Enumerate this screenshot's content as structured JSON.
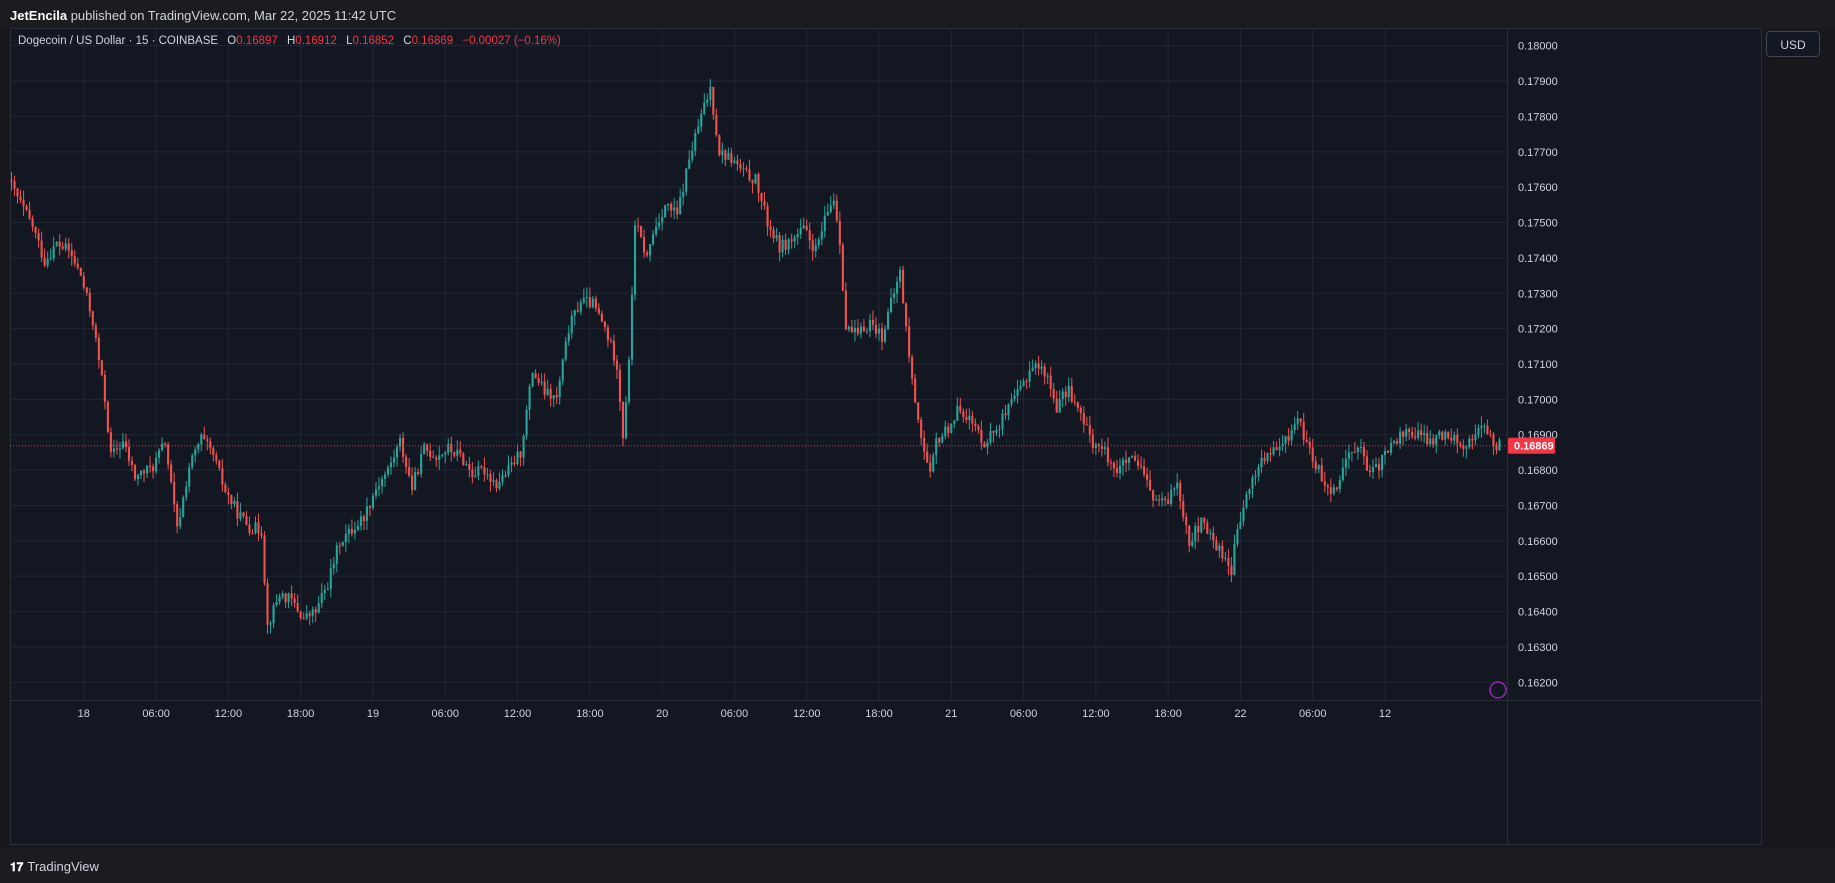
{
  "header": {
    "author": "JetEncila",
    "rest": " published on TradingView.com, Mar 22, 2025 11:42 UTC"
  },
  "legend": {
    "symbol": "Dogecoin / US Dollar · 15 · COINBASE",
    "o_label": "O",
    "o": "0.16897",
    "h_label": "H",
    "h": "0.16912",
    "l_label": "L",
    "l": "0.16852",
    "c_label": "C",
    "c": "0.16869",
    "change": "−0.00027 (−0.16%)"
  },
  "currency_button": "USD",
  "footer": {
    "brand": "TradingView",
    "logo_icon": "tradingview-logo-icon"
  },
  "colors": {
    "up": "#26a69a",
    "down": "#ef5350",
    "last_price": "#f23645",
    "grid": "#232734",
    "text": "#d1d4dc"
  },
  "chart_data": {
    "type": "candlestick",
    "interval": "15m",
    "ylim": [
      0.1615,
      0.1805
    ],
    "y_ticks": [
      "0.18000",
      "0.17900",
      "0.17800",
      "0.17700",
      "0.17600",
      "0.17500",
      "0.17400",
      "0.17300",
      "0.17200",
      "0.17100",
      "0.17000",
      "0.16900",
      "0.16800",
      "0.16700",
      "0.16600",
      "0.16500",
      "0.16400",
      "0.16300",
      "0.16200"
    ],
    "x_ticks": [
      "18",
      "06:00",
      "12:00",
      "18:00",
      "19",
      "06:00",
      "12:00",
      "18:00",
      "20",
      "06:00",
      "12:00",
      "18:00",
      "21",
      "06:00",
      "12:00",
      "18:00",
      "22",
      "06:00",
      "12"
    ],
    "last_price": {
      "value": 0.16869,
      "label": "0.16869"
    },
    "price_anchors": [
      [
        0,
        0.1762
      ],
      [
        3,
        0.1757
      ],
      [
        8,
        0.1749
      ],
      [
        12,
        0.1739
      ],
      [
        16,
        0.1744
      ],
      [
        20,
        0.1742
      ],
      [
        24,
        0.1735
      ],
      [
        28,
        0.1722
      ],
      [
        32,
        0.17
      ],
      [
        34,
        0.1684
      ],
      [
        38,
        0.1688
      ],
      [
        42,
        0.1678
      ],
      [
        48,
        0.1681
      ],
      [
        52,
        0.1688
      ],
      [
        56,
        0.1663
      ],
      [
        60,
        0.1681
      ],
      [
        64,
        0.1689
      ],
      [
        68,
        0.1684
      ],
      [
        72,
        0.1674
      ],
      [
        76,
        0.1668
      ],
      [
        80,
        0.1664
      ],
      [
        84,
        0.1663
      ],
      [
        86,
        0.1636
      ],
      [
        90,
        0.1645
      ],
      [
        94,
        0.1643
      ],
      [
        98,
        0.1638
      ],
      [
        102,
        0.164
      ],
      [
        106,
        0.1648
      ],
      [
        110,
        0.166
      ],
      [
        114,
        0.1663
      ],
      [
        118,
        0.1667
      ],
      [
        122,
        0.1675
      ],
      [
        126,
        0.168
      ],
      [
        130,
        0.1688
      ],
      [
        134,
        0.1675
      ],
      [
        138,
        0.1686
      ],
      [
        142,
        0.1684
      ],
      [
        146,
        0.1686
      ],
      [
        150,
        0.1684
      ],
      [
        154,
        0.1679
      ],
      [
        158,
        0.168
      ],
      [
        162,
        0.1676
      ],
      [
        166,
        0.168
      ],
      [
        170,
        0.1685
      ],
      [
        174,
        0.1708
      ],
      [
        178,
        0.1702
      ],
      [
        182,
        0.17
      ],
      [
        186,
        0.172
      ],
      [
        190,
        0.1728
      ],
      [
        194,
        0.1727
      ],
      [
        198,
        0.172
      ],
      [
        202,
        0.171
      ],
      [
        204,
        0.169
      ],
      [
        206,
        0.171
      ],
      [
        208,
        0.175
      ],
      [
        212,
        0.174
      ],
      [
        214,
        0.1747
      ],
      [
        218,
        0.1755
      ],
      [
        222,
        0.1752
      ],
      [
        226,
        0.1768
      ],
      [
        230,
        0.178
      ],
      [
        233,
        0.1788
      ],
      [
        236,
        0.177
      ],
      [
        240,
        0.1768
      ],
      [
        244,
        0.1764
      ],
      [
        248,
        0.1762
      ],
      [
        252,
        0.175
      ],
      [
        256,
        0.1743
      ],
      [
        260,
        0.1745
      ],
      [
        264,
        0.1748
      ],
      [
        268,
        0.1742
      ],
      [
        272,
        0.1753
      ],
      [
        274,
        0.1757
      ],
      [
        276,
        0.1745
      ],
      [
        278,
        0.172
      ],
      [
        282,
        0.1718
      ],
      [
        286,
        0.1722
      ],
      [
        290,
        0.1718
      ],
      [
        294,
        0.173
      ],
      [
        296,
        0.1736
      ],
      [
        298,
        0.172
      ],
      [
        300,
        0.1705
      ],
      [
        304,
        0.1685
      ],
      [
        306,
        0.1678
      ],
      [
        308,
        0.1688
      ],
      [
        312,
        0.1692
      ],
      [
        316,
        0.1698
      ],
      [
        320,
        0.1693
      ],
      [
        324,
        0.1688
      ],
      [
        328,
        0.1692
      ],
      [
        332,
        0.1697
      ],
      [
        336,
        0.1703
      ],
      [
        340,
        0.171
      ],
      [
        344,
        0.1708
      ],
      [
        348,
        0.1698
      ],
      [
        352,
        0.1703
      ],
      [
        356,
        0.1695
      ],
      [
        360,
        0.1688
      ],
      [
        364,
        0.1685
      ],
      [
        368,
        0.168
      ],
      [
        372,
        0.1683
      ],
      [
        376,
        0.168
      ],
      [
        380,
        0.1672
      ],
      [
        384,
        0.167
      ],
      [
        388,
        0.1677
      ],
      [
        392,
        0.166
      ],
      [
        396,
        0.1665
      ],
      [
        400,
        0.166
      ],
      [
        404,
        0.1655
      ],
      [
        406,
        0.1652
      ],
      [
        408,
        0.1663
      ],
      [
        412,
        0.1675
      ],
      [
        416,
        0.1683
      ],
      [
        420,
        0.1685
      ],
      [
        424,
        0.1688
      ],
      [
        428,
        0.1695
      ],
      [
        432,
        0.1685
      ],
      [
        436,
        0.1678
      ],
      [
        440,
        0.1674
      ],
      [
        444,
        0.1683
      ],
      [
        448,
        0.1688
      ],
      [
        452,
        0.1678
      ],
      [
        456,
        0.1683
      ],
      [
        460,
        0.1688
      ],
      [
        464,
        0.1691
      ],
      [
        468,
        0.169
      ],
      [
        472,
        0.1688
      ],
      [
        476,
        0.169
      ],
      [
        480,
        0.169
      ],
      [
        484,
        0.1686
      ],
      [
        488,
        0.1693
      ],
      [
        492,
        0.1689
      ],
      [
        494,
        0.1687
      ]
    ]
  }
}
